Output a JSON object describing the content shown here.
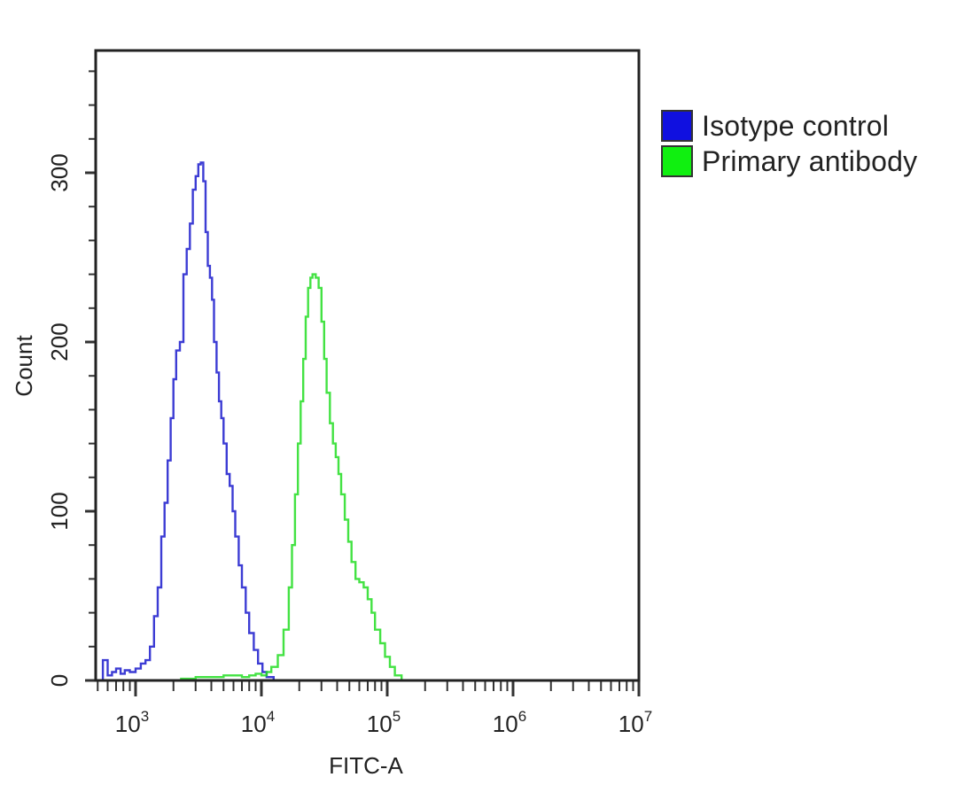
{
  "chart_data": {
    "type": "line",
    "subtype": "flow-cytometry-histogram",
    "title": "",
    "xlabel": "FITC-A",
    "ylabel": "Count",
    "xscale": "log",
    "xlim": [
      500,
      10000000
    ],
    "ylim": [
      0,
      370
    ],
    "x_ticks": [
      {
        "value": 1000,
        "base": "10",
        "exp": "3"
      },
      {
        "value": 10000,
        "base": "10",
        "exp": "4"
      },
      {
        "value": 100000,
        "base": "10",
        "exp": "5"
      },
      {
        "value": 1000000,
        "base": "10",
        "exp": "6"
      },
      {
        "value": 10000000,
        "base": "10",
        "exp": "7"
      }
    ],
    "y_ticks": [
      0,
      100,
      200,
      300
    ],
    "y_minor_step": 20,
    "grid": false,
    "legend_position": "right-top",
    "series": [
      {
        "name": "Isotype control",
        "color": "#1a1acc",
        "peak": {
          "x": 3200,
          "y": 307
        },
        "points": [
          [
            550,
            12
          ],
          [
            600,
            3
          ],
          [
            650,
            5
          ],
          [
            700,
            7
          ],
          [
            760,
            4
          ],
          [
            820,
            6
          ],
          [
            900,
            5
          ],
          [
            1000,
            7
          ],
          [
            1100,
            10
          ],
          [
            1200,
            12
          ],
          [
            1300,
            20
          ],
          [
            1400,
            38
          ],
          [
            1500,
            55
          ],
          [
            1600,
            85
          ],
          [
            1700,
            105
          ],
          [
            1800,
            130
          ],
          [
            1900,
            155
          ],
          [
            2000,
            178
          ],
          [
            2100,
            195
          ],
          [
            2250,
            200
          ],
          [
            2400,
            240
          ],
          [
            2550,
            255
          ],
          [
            2700,
            270
          ],
          [
            2850,
            290
          ],
          [
            3000,
            298
          ],
          [
            3150,
            305
          ],
          [
            3300,
            306
          ],
          [
            3450,
            295
          ],
          [
            3600,
            265
          ],
          [
            3750,
            245
          ],
          [
            3900,
            238
          ],
          [
            4050,
            225
          ],
          [
            4200,
            200
          ],
          [
            4400,
            182
          ],
          [
            4600,
            165
          ],
          [
            4800,
            155
          ],
          [
            5000,
            140
          ],
          [
            5300,
            122
          ],
          [
            5600,
            115
          ],
          [
            5900,
            100
          ],
          [
            6200,
            85
          ],
          [
            6600,
            68
          ],
          [
            7000,
            55
          ],
          [
            7500,
            40
          ],
          [
            8000,
            28
          ],
          [
            8700,
            18
          ],
          [
            9400,
            10
          ],
          [
            10200,
            5
          ],
          [
            11000,
            2
          ],
          [
            12500,
            0
          ]
        ]
      },
      {
        "name": "Primary antibody",
        "color": "#22dd22",
        "peak": {
          "x": 25000,
          "y": 240
        },
        "points": [
          [
            2300,
            1
          ],
          [
            3000,
            2
          ],
          [
            4000,
            2
          ],
          [
            5000,
            3
          ],
          [
            6000,
            3
          ],
          [
            7000,
            2
          ],
          [
            8000,
            3
          ],
          [
            9000,
            4
          ],
          [
            10000,
            3
          ],
          [
            11000,
            5
          ],
          [
            12000,
            8
          ],
          [
            13500,
            15
          ],
          [
            15000,
            30
          ],
          [
            16500,
            55
          ],
          [
            17500,
            80
          ],
          [
            18500,
            110
          ],
          [
            19500,
            140
          ],
          [
            20500,
            165
          ],
          [
            21500,
            190
          ],
          [
            22500,
            215
          ],
          [
            23500,
            232
          ],
          [
            24500,
            238
          ],
          [
            25500,
            240
          ],
          [
            27000,
            238
          ],
          [
            28500,
            232
          ],
          [
            30000,
            212
          ],
          [
            31500,
            190
          ],
          [
            33000,
            170
          ],
          [
            35000,
            152
          ],
          [
            37000,
            140
          ],
          [
            39000,
            132
          ],
          [
            41000,
            122
          ],
          [
            43000,
            110
          ],
          [
            46000,
            95
          ],
          [
            49000,
            82
          ],
          [
            52000,
            70
          ],
          [
            56000,
            60
          ],
          [
            60000,
            58
          ],
          [
            65000,
            55
          ],
          [
            70000,
            48
          ],
          [
            75000,
            40
          ],
          [
            80000,
            30
          ],
          [
            88000,
            22
          ],
          [
            96000,
            14
          ],
          [
            105000,
            8
          ],
          [
            115000,
            3
          ],
          [
            130000,
            0
          ]
        ]
      }
    ]
  },
  "legend": {
    "items": [
      {
        "label": "Isotype control",
        "color": "#1010e0"
      },
      {
        "label": "Primary antibody",
        "color": "#10f010"
      }
    ]
  },
  "axes": {
    "x_title": "FITC-A",
    "y_title": "Count"
  }
}
